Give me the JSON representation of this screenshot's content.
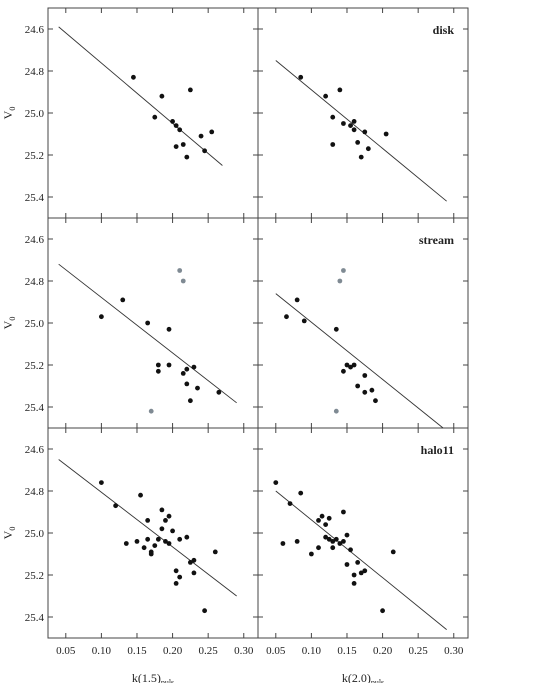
{
  "chart_data": {
    "type": "scatter",
    "layout": "3 rows x 2 columns, shared axes, inverted y-axis",
    "y_axis": {
      "label": "V",
      "label_sub": "0",
      "ticks": [
        "24.6",
        "24.8",
        "25.0",
        "25.2",
        "25.4"
      ],
      "tick_values": [
        24.6,
        24.8,
        25.0,
        25.2,
        25.4
      ],
      "ylim": [
        24.5,
        25.5
      ],
      "inverted": true
    },
    "x_axis_left": {
      "label": "k(1.5)",
      "label_sub": "puls",
      "ticks": [
        "0.05",
        "0.10",
        "0.15",
        "0.20",
        "0.25",
        "0.30"
      ],
      "tick_values": [
        0.05,
        0.1,
        0.15,
        0.2,
        0.25,
        0.3
      ],
      "xlim": [
        0.025,
        0.32
      ]
    },
    "x_axis_right": {
      "label": "k(2.0)",
      "label_sub": "puls",
      "ticks": [
        "0.05",
        "0.10",
        "0.15",
        "0.20",
        "0.25",
        "0.30"
      ],
      "tick_values": [
        0.05,
        0.1,
        0.15,
        0.2,
        0.25,
        0.3
      ],
      "xlim": [
        0.025,
        0.32
      ]
    },
    "colors": {
      "point": "#111111",
      "excluded_point": "#7f8a93",
      "line": "#333333",
      "frame": "#444444"
    },
    "panels": [
      {
        "row": 0,
        "col": 0,
        "label": "",
        "fit_line": {
          "x": [
            0.04,
            0.27
          ],
          "y": [
            24.59,
            25.25
          ]
        },
        "points": [
          [
            0.145,
            24.83
          ],
          [
            0.175,
            25.02
          ],
          [
            0.185,
            24.92
          ],
          [
            0.2,
            25.04
          ],
          [
            0.205,
            25.06
          ],
          [
            0.21,
            25.08
          ],
          [
            0.205,
            25.16
          ],
          [
            0.215,
            25.15
          ],
          [
            0.22,
            25.21
          ],
          [
            0.225,
            24.89
          ],
          [
            0.24,
            25.11
          ],
          [
            0.245,
            25.18
          ],
          [
            0.255,
            25.09
          ]
        ],
        "excluded_points": []
      },
      {
        "row": 0,
        "col": 1,
        "label": "disk",
        "fit_line": {
          "x": [
            0.05,
            0.29
          ],
          "y": [
            24.75,
            25.42
          ]
        },
        "points": [
          [
            0.085,
            24.83
          ],
          [
            0.12,
            24.92
          ],
          [
            0.13,
            25.02
          ],
          [
            0.14,
            24.89
          ],
          [
            0.145,
            25.05
          ],
          [
            0.155,
            25.06
          ],
          [
            0.16,
            25.04
          ],
          [
            0.16,
            25.08
          ],
          [
            0.165,
            25.14
          ],
          [
            0.17,
            25.21
          ],
          [
            0.175,
            25.09
          ],
          [
            0.18,
            25.17
          ],
          [
            0.205,
            25.1
          ],
          [
            0.13,
            25.15
          ]
        ],
        "excluded_points": []
      },
      {
        "row": 1,
        "col": 0,
        "label": "",
        "fit_line": {
          "x": [
            0.04,
            0.29
          ],
          "y": [
            24.72,
            25.38
          ]
        },
        "points": [
          [
            0.1,
            24.97
          ],
          [
            0.13,
            24.89
          ],
          [
            0.165,
            25.0
          ],
          [
            0.18,
            25.2
          ],
          [
            0.18,
            25.23
          ],
          [
            0.195,
            25.03
          ],
          [
            0.195,
            25.2
          ],
          [
            0.215,
            25.24
          ],
          [
            0.22,
            25.22
          ],
          [
            0.22,
            25.29
          ],
          [
            0.225,
            25.37
          ],
          [
            0.23,
            25.21
          ],
          [
            0.235,
            25.31
          ],
          [
            0.265,
            25.33
          ]
        ],
        "excluded_points": [
          [
            0.21,
            24.75
          ],
          [
            0.215,
            24.8
          ],
          [
            0.17,
            25.42
          ]
        ]
      },
      {
        "row": 1,
        "col": 1,
        "label": "stream",
        "fit_line": {
          "x": [
            0.05,
            0.285
          ],
          "y": [
            24.86,
            25.5
          ]
        },
        "points": [
          [
            0.065,
            24.97
          ],
          [
            0.08,
            24.89
          ],
          [
            0.09,
            24.99
          ],
          [
            0.135,
            25.03
          ],
          [
            0.145,
            25.23
          ],
          [
            0.15,
            25.2
          ],
          [
            0.155,
            25.21
          ],
          [
            0.16,
            25.2
          ],
          [
            0.165,
            25.3
          ],
          [
            0.175,
            25.33
          ],
          [
            0.175,
            25.25
          ],
          [
            0.185,
            25.32
          ],
          [
            0.19,
            25.37
          ]
        ],
        "excluded_points": [
          [
            0.145,
            24.75
          ],
          [
            0.14,
            24.8
          ],
          [
            0.135,
            25.42
          ]
        ]
      },
      {
        "row": 2,
        "col": 0,
        "label": "",
        "fit_line": {
          "x": [
            0.04,
            0.29
          ],
          "y": [
            24.65,
            25.3
          ]
        },
        "points": [
          [
            0.1,
            24.76
          ],
          [
            0.12,
            24.87
          ],
          [
            0.135,
            25.05
          ],
          [
            0.15,
            25.04
          ],
          [
            0.155,
            24.82
          ],
          [
            0.16,
            25.07
          ],
          [
            0.165,
            25.03
          ],
          [
            0.165,
            24.94
          ],
          [
            0.17,
            25.09
          ],
          [
            0.17,
            25.1
          ],
          [
            0.175,
            25.06
          ],
          [
            0.18,
            25.03
          ],
          [
            0.185,
            24.98
          ],
          [
            0.185,
            24.89
          ],
          [
            0.19,
            25.04
          ],
          [
            0.19,
            24.94
          ],
          [
            0.195,
            24.92
          ],
          [
            0.195,
            25.05
          ],
          [
            0.2,
            24.99
          ],
          [
            0.205,
            25.18
          ],
          [
            0.205,
            25.24
          ],
          [
            0.21,
            25.21
          ],
          [
            0.21,
            25.03
          ],
          [
            0.22,
            25.02
          ],
          [
            0.225,
            25.14
          ],
          [
            0.23,
            25.19
          ],
          [
            0.23,
            25.13
          ],
          [
            0.245,
            25.37
          ],
          [
            0.26,
            25.09
          ]
        ],
        "excluded_points": []
      },
      {
        "row": 2,
        "col": 1,
        "label": "halo11",
        "fit_line": {
          "x": [
            0.05,
            0.29
          ],
          "y": [
            24.8,
            25.46
          ]
        },
        "points": [
          [
            0.05,
            24.76
          ],
          [
            0.06,
            25.05
          ],
          [
            0.07,
            24.86
          ],
          [
            0.08,
            25.04
          ],
          [
            0.085,
            24.81
          ],
          [
            0.1,
            25.1
          ],
          [
            0.11,
            25.07
          ],
          [
            0.11,
            24.94
          ],
          [
            0.115,
            24.92
          ],
          [
            0.12,
            24.96
          ],
          [
            0.12,
            25.02
          ],
          [
            0.125,
            25.03
          ],
          [
            0.125,
            24.93
          ],
          [
            0.13,
            25.04
          ],
          [
            0.13,
            25.07
          ],
          [
            0.135,
            25.03
          ],
          [
            0.14,
            25.05
          ],
          [
            0.145,
            24.9
          ],
          [
            0.145,
            25.04
          ],
          [
            0.15,
            25.01
          ],
          [
            0.15,
            25.15
          ],
          [
            0.155,
            25.08
          ],
          [
            0.16,
            25.2
          ],
          [
            0.16,
            25.24
          ],
          [
            0.165,
            25.14
          ],
          [
            0.17,
            25.19
          ],
          [
            0.175,
            25.18
          ],
          [
            0.2,
            25.37
          ],
          [
            0.215,
            25.09
          ]
        ],
        "excluded_points": []
      }
    ]
  }
}
